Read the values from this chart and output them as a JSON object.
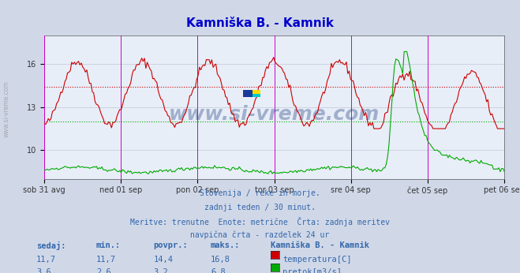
{
  "title": "Kamniška B. - Kamnik",
  "title_color": "#0000cc",
  "bg_color": "#d0d8e8",
  "plot_bg_color": "#e8eef8",
  "grid_color": "#c0c8d8",
  "x_labels": [
    "sob 31 avg",
    "ned 01 sep",
    "pon 02 sep",
    "tor 03 sep",
    "sre 04 sep",
    "čet 05 sep",
    "pet 06 sep"
  ],
  "x_ticks_norm": [
    0.0,
    0.1667,
    0.3333,
    0.5,
    0.6667,
    0.8333,
    1.0
  ],
  "y_ticks_temp": [
    10,
    13,
    16
  ],
  "ylim_temp": [
    8,
    18
  ],
  "ylim_flow": [
    0,
    8
  ],
  "vline_color": "#cc00cc",
  "hline_temp_color": "#cc0000",
  "hline_flow_color": "#00aa00",
  "temp_avg": 14.4,
  "flow_avg": 3.2,
  "watermark": "www.si-vreme.com",
  "watermark_color": "#1a3a7a",
  "watermark_alpha": 0.35,
  "subtitle_lines": [
    "Slovenija / reke in morje.",
    "zadnji teden / 30 minut.",
    "Meritve: trenutne  Enote: metrične  Črta: zadnja meritev",
    "navpična črta - razdelek 24 ur"
  ],
  "subtitle_color": "#3366aa",
  "table_header": [
    "sedaj:",
    "min.:",
    "povpr.:",
    "maks.:",
    "Kamniška B. - Kamnik"
  ],
  "table_data": [
    [
      "11,7",
      "11,7",
      "14,4",
      "16,8"
    ],
    [
      "3,6",
      "2,6",
      "3,2",
      "6,8"
    ]
  ],
  "legend_labels": [
    "temperatura[C]",
    "pretok[m3/s]"
  ],
  "legend_colors": [
    "#cc0000",
    "#00aa00"
  ],
  "temp_color": "#cc0000",
  "flow_color": "#00aa00",
  "n_points": 336,
  "flow_max": 6.8
}
